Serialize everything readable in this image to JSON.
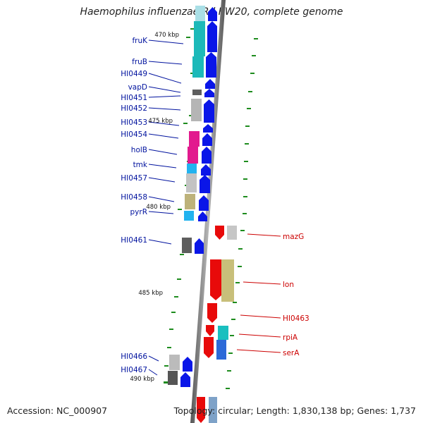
{
  "title": "Haemophilus influenzae Rd KW20, complete genome",
  "accession_text": "Accession: NC_000907",
  "topology_text": "Topology: circular; Length: 1,830,138 bp; Genes: 1,737",
  "colors": {
    "label_left": "#00129e",
    "label_right": "#cc0000",
    "forward_arrow": "#0a16e8",
    "reverse_arrow": "#e80a0a",
    "backbone": "#7a7a7a",
    "tick": "#1e8c1e"
  },
  "kbp_markers": [
    "470 kbp",
    "475 kbp",
    "480 kbp",
    "485 kbp",
    "490 kbp"
  ],
  "left_genes": [
    "fruK",
    "fruB",
    "HI0449",
    "vapD",
    "HI0451",
    "HI0452",
    "HI0453",
    "HI0454",
    "holB",
    "tmk",
    "HI0457",
    "HI0458",
    "pyrR",
    "HI0461",
    "HI0466",
    "HI0467"
  ],
  "right_genes": [
    "mazG",
    "lon",
    "HI0463",
    "rpiA",
    "serA"
  ]
}
